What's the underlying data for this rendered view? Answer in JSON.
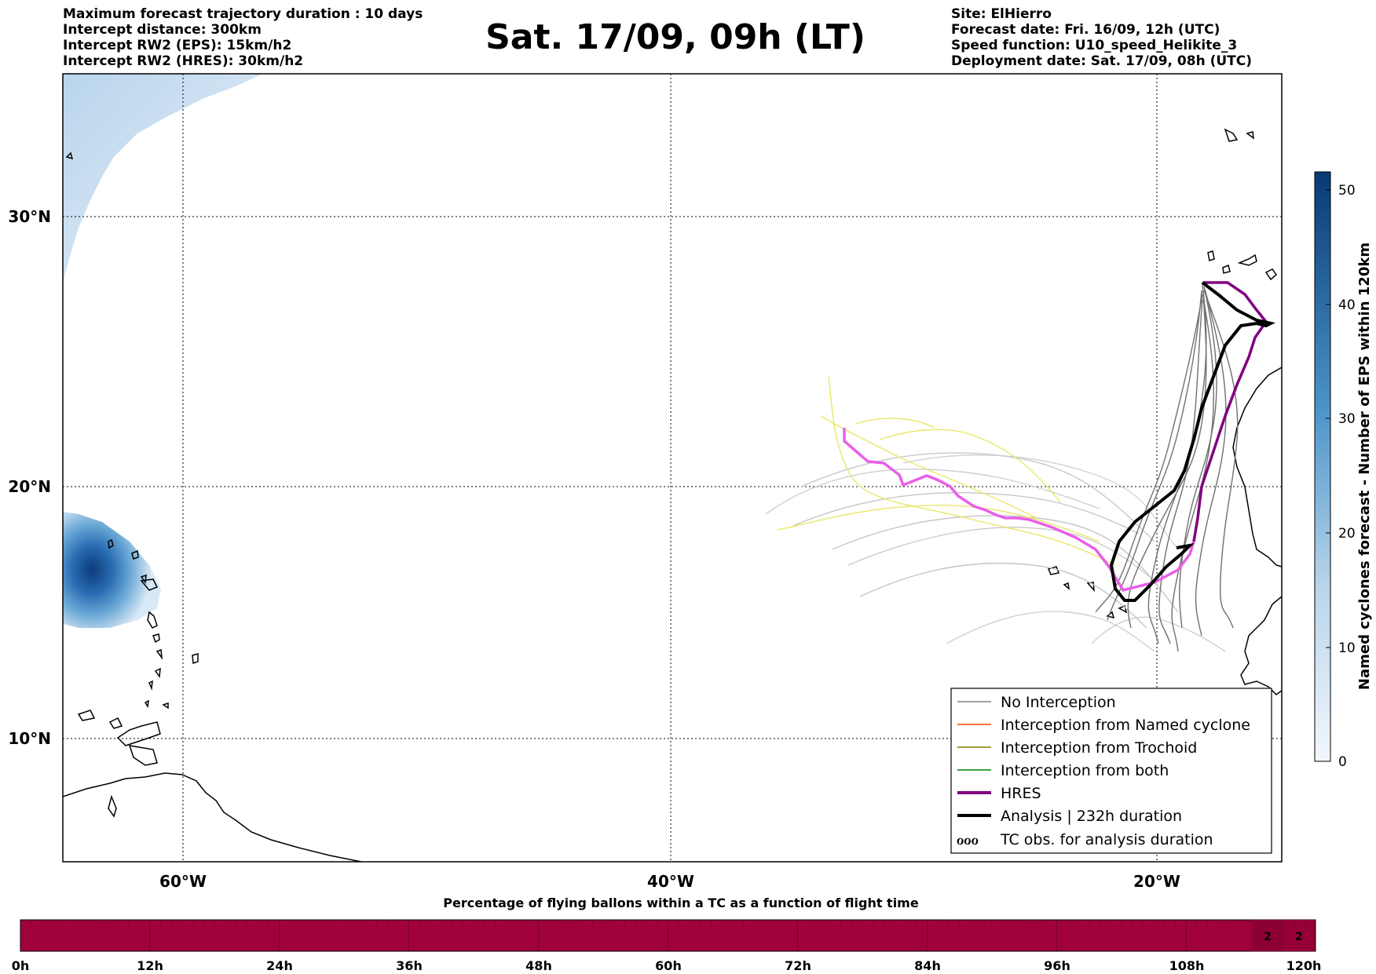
{
  "header": {
    "left_lines": [
      "Maximum forecast trajectory duration : 10 days",
      "Intercept distance: 300km",
      "Intercept RW2 (EPS):  15km/h2",
      "Intercept RW2 (HRES): 30km/h2"
    ],
    "title": "Sat. 17/09, 09h (LT)",
    "right_lines": [
      "Site: ElHierro",
      "Forecast date: Fri. 16/09, 12h (UTC)",
      "Speed function: U10_speed_Helikite_3",
      "Deployment date: Sat. 17/09, 08h (UTC)"
    ]
  },
  "map": {
    "lon_ticks": [
      "60°W",
      "40°W",
      "20°W"
    ],
    "lat_ticks": [
      "30°N",
      "20°N",
      "10°N"
    ]
  },
  "legend": {
    "items": [
      {
        "label": "No Interception",
        "color": "#808080"
      },
      {
        "label": "Interception from Named cyclone",
        "color": "#ff4500"
      },
      {
        "label": "Interception from Trochoid",
        "color": "#808000"
      },
      {
        "label": "Interception from both",
        "color": "#008000"
      },
      {
        "label": "HRES",
        "color": "#800080"
      },
      {
        "label": "Analysis | 232h duration",
        "color": "#000000"
      },
      {
        "label": "TC obs. for analysis duration",
        "symbol": "ℴℴℴ"
      }
    ]
  },
  "colorbar": {
    "label": "Named cyclones forecast - Number of EPS within 120km",
    "ticks": [
      "0",
      "10",
      "20",
      "30",
      "40",
      "50"
    ]
  },
  "timebar": {
    "title": "Percentage of flying ballons within a TC as a function of flight time",
    "ticks": [
      "0h",
      "12h",
      "24h",
      "36h",
      "48h",
      "60h",
      "72h",
      "84h",
      "96h",
      "108h",
      "120h"
    ],
    "cell_values": [
      "2",
      "2"
    ],
    "fill_color": "#a0003c"
  }
}
